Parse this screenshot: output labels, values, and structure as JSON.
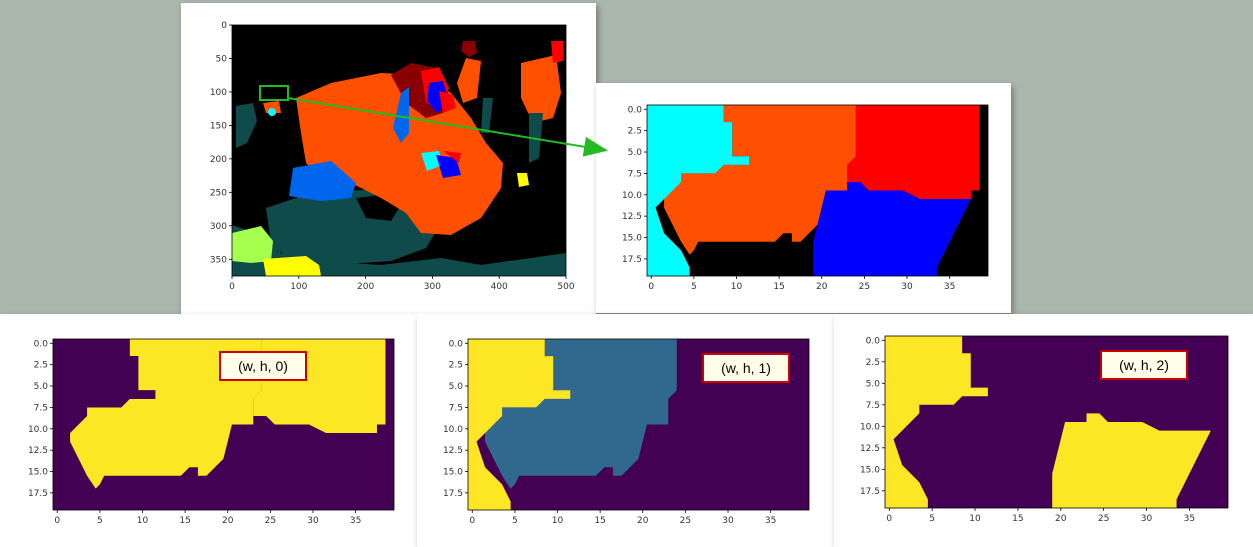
{
  "colors": {
    "background": "#a9b7ad",
    "seg_black": "#000000",
    "seg_orange": "#ff4f00",
    "seg_red": "#ff0000",
    "seg_blue": "#0000ff",
    "seg_cyan": "#00ffff",
    "seg_darkteal": "#0f4b4b",
    "seg_maroon": "#8a0000",
    "seg_mid_blue": "#0066ee",
    "seg_lime": "#a6ff4d",
    "seg_yellow": "#ffff00",
    "viridis_low": "#440154",
    "viridis_mid": "#31688e",
    "viridis_high": "#fde725",
    "arrow": "#22bb22",
    "label_border": "#cc0000",
    "label_fill": "#fffee8"
  },
  "full_segmentation": {
    "x_ticks": [
      "0",
      "100",
      "200",
      "300",
      "400",
      "500"
    ],
    "y_ticks": [
      "0",
      "50",
      "100",
      "150",
      "200",
      "250",
      "300",
      "350"
    ]
  },
  "crop_segmentation": {
    "x_ticks": [
      "0",
      "5",
      "10",
      "15",
      "20",
      "25",
      "30",
      "35"
    ],
    "y_ticks": [
      "0.0",
      "2.5",
      "5.0",
      "7.5",
      "10.0",
      "12.5",
      "15.0",
      "17.5"
    ]
  },
  "channels": [
    {
      "label": "(w, h, 0)",
      "x_ticks": [
        "0",
        "5",
        "10",
        "15",
        "20",
        "25",
        "30",
        "35"
      ],
      "y_ticks": [
        "0.0",
        "2.5",
        "5.0",
        "7.5",
        "10.0",
        "12.5",
        "15.0",
        "17.5"
      ]
    },
    {
      "label": "(w, h, 1)",
      "x_ticks": [
        "0",
        "5",
        "10",
        "15",
        "20",
        "25",
        "30",
        "35"
      ],
      "y_ticks": [
        "0.0",
        "2.5",
        "5.0",
        "7.5",
        "10.0",
        "12.5",
        "15.0",
        "17.5"
      ]
    },
    {
      "label": "(w, h, 2)",
      "x_ticks": [
        "0",
        "5",
        "10",
        "15",
        "20",
        "25",
        "30",
        "35"
      ],
      "y_ticks": [
        "0.0",
        "2.5",
        "5.0",
        "7.5",
        "10.0",
        "12.5",
        "15.0",
        "17.5"
      ]
    }
  ]
}
